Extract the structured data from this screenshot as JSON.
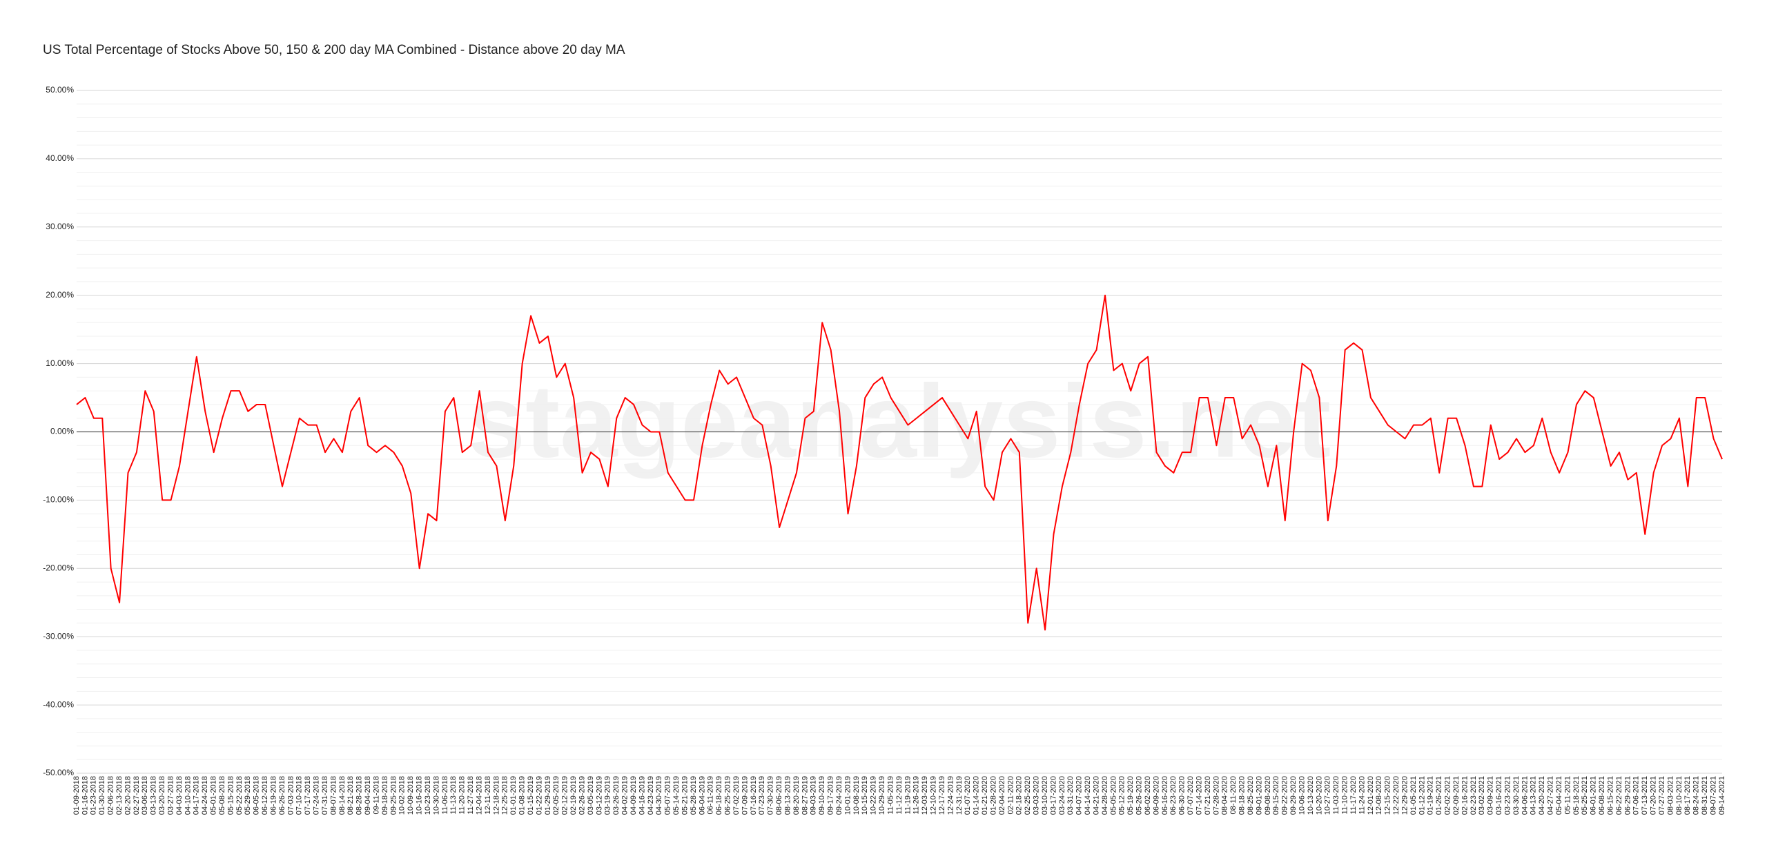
{
  "chart_data": {
    "type": "line",
    "title": "US Total Percentage of Stocks Above 50, 150 & 200 day MA Combined - Distance above 20 day MA",
    "watermark": "stageanalysis.net",
    "categories": [
      "01-09-2018",
      "01-16-2018",
      "01-23-2018",
      "01-30-2018",
      "02-06-2018",
      "02-13-2018",
      "02-20-2018",
      "02-27-2018",
      "03-06-2018",
      "03-13-2018",
      "03-20-2018",
      "03-27-2018",
      "04-03-2018",
      "04-10-2018",
      "04-17-2018",
      "04-24-2018",
      "05-01-2018",
      "05-08-2018",
      "05-15-2018",
      "05-22-2018",
      "05-29-2018",
      "06-05-2018",
      "06-12-2018",
      "06-19-2018",
      "06-26-2018",
      "07-03-2018",
      "07-10-2018",
      "07-17-2018",
      "07-24-2018",
      "07-31-2018",
      "08-07-2018",
      "08-14-2018",
      "08-21-2018",
      "08-28-2018",
      "09-04-2018",
      "09-11-2018",
      "09-18-2018",
      "09-25-2018",
      "10-02-2018",
      "10-09-2018",
      "10-16-2018",
      "10-23-2018",
      "10-30-2018",
      "11-06-2018",
      "11-13-2018",
      "11-20-2018",
      "11-27-2018",
      "12-04-2018",
      "12-11-2018",
      "12-18-2018",
      "12-25-2018",
      "01-01-2019",
      "01-08-2019",
      "01-15-2019",
      "01-22-2019",
      "01-29-2019",
      "02-05-2019",
      "02-12-2019",
      "02-19-2019",
      "02-26-2019",
      "03-05-2019",
      "03-12-2019",
      "03-19-2019",
      "03-26-2019",
      "04-02-2019",
      "04-09-2019",
      "04-16-2019",
      "04-23-2019",
      "04-30-2019",
      "05-07-2019",
      "05-14-2019",
      "05-21-2019",
      "05-28-2019",
      "06-04-2019",
      "06-11-2019",
      "06-18-2019",
      "06-25-2019",
      "07-02-2019",
      "07-09-2019",
      "07-16-2019",
      "07-23-2019",
      "07-30-2019",
      "08-06-2019",
      "08-13-2019",
      "08-20-2019",
      "08-27-2019",
      "09-03-2019",
      "09-10-2019",
      "09-17-2019",
      "09-24-2019",
      "10-01-2019",
      "10-08-2019",
      "10-15-2019",
      "10-22-2019",
      "10-29-2019",
      "11-05-2019",
      "11-12-2019",
      "11-19-2019",
      "11-26-2019",
      "12-03-2019",
      "12-10-2019",
      "12-17-2019",
      "12-24-2019",
      "12-31-2019",
      "01-07-2020",
      "01-14-2020",
      "01-21-2020",
      "01-28-2020",
      "02-04-2020",
      "02-11-2020",
      "02-18-2020",
      "02-25-2020",
      "03-03-2020",
      "03-10-2020",
      "03-17-2020",
      "03-24-2020",
      "03-31-2020",
      "04-07-2020",
      "04-14-2020",
      "04-21-2020",
      "04-28-2020",
      "05-05-2020",
      "05-12-2020",
      "05-19-2020",
      "05-26-2020",
      "06-02-2020",
      "06-09-2020",
      "06-16-2020",
      "06-23-2020",
      "06-30-2020",
      "07-07-2020",
      "07-14-2020",
      "07-21-2020",
      "07-28-2020",
      "08-04-2020",
      "08-11-2020",
      "08-18-2020",
      "08-25-2020",
      "09-01-2020",
      "09-08-2020",
      "09-15-2020",
      "09-22-2020",
      "09-29-2020",
      "10-06-2020",
      "10-13-2020",
      "10-20-2020",
      "10-27-2020",
      "11-03-2020",
      "11-10-2020",
      "11-17-2020",
      "11-24-2020",
      "12-01-2020",
      "12-08-2020",
      "12-15-2020",
      "12-22-2020",
      "12-29-2020",
      "01-05-2021",
      "01-12-2021",
      "01-19-2021",
      "01-26-2021",
      "02-02-2021",
      "02-09-2021",
      "02-16-2021",
      "02-23-2021",
      "03-02-2021",
      "03-09-2021",
      "03-16-2021",
      "03-23-2021",
      "03-30-2021",
      "04-06-2021",
      "04-13-2021",
      "04-20-2021",
      "04-27-2021",
      "05-04-2021",
      "05-11-2021",
      "05-18-2021",
      "05-25-2021",
      "06-01-2021",
      "06-08-2021",
      "06-15-2021",
      "06-22-2021",
      "06-29-2021",
      "07-06-2021",
      "07-13-2021",
      "07-20-2021",
      "07-27-2021",
      "08-03-2021",
      "08-10-2021",
      "08-17-2021",
      "08-24-2021",
      "08-31-2021",
      "09-07-2021",
      "09-14-2021"
    ],
    "values": [
      4,
      5,
      2,
      2,
      -20,
      -25,
      -6,
      -3,
      6,
      3,
      -10,
      -10,
      -5,
      3,
      11,
      3,
      -3,
      2,
      6,
      6,
      3,
      4,
      4,
      -2,
      -8,
      -3,
      2,
      1,
      1,
      -3,
      -1,
      -3,
      3,
      5,
      -2,
      -3,
      -2,
      -3,
      -5,
      -9,
      -20,
      -12,
      -13,
      3,
      5,
      -3,
      -2,
      6,
      -3,
      -5,
      -13,
      -5,
      10,
      17,
      13,
      14,
      8,
      10,
      5,
      -6,
      -3,
      -4,
      -8,
      2,
      5,
      4,
      1,
      0,
      0,
      -6,
      -8,
      -10,
      -10,
      -2,
      4,
      9,
      7,
      8,
      5,
      2,
      1,
      -5,
      -14,
      -10,
      -6,
      2,
      3,
      16,
      12,
      3,
      -12,
      -5,
      5,
      7,
      8,
      5,
      3,
      1,
      2,
      3,
      4,
      5,
      3,
      1,
      -1,
      3,
      -8,
      -10,
      -3,
      -1,
      -3,
      -28,
      -20,
      -29,
      -15,
      -8,
      -3,
      4,
      10,
      12,
      20,
      9,
      10,
      6,
      10,
      11,
      -3,
      -5,
      -6,
      -3,
      -3,
      5,
      5,
      -2,
      5,
      5,
      -1,
      1,
      -2,
      -8,
      -2,
      -13,
      0,
      10,
      9,
      5,
      -13,
      -5,
      12,
      13,
      12,
      5,
      3,
      1,
      0,
      -1,
      1,
      1,
      2,
      -6,
      2,
      2,
      -2,
      -8,
      -8,
      1,
      -4,
      -3,
      -1,
      -3,
      -2,
      2,
      -3,
      -6,
      -3,
      4,
      6,
      5,
      0,
      -5,
      -3,
      -7,
      -6,
      -15,
      -6,
      -2,
      -1,
      2,
      -8,
      5,
      5,
      -1,
      -4
    ],
    "color": "#ff0000",
    "ylim": [
      -50,
      50
    ],
    "yticks": [
      {
        "value": -50,
        "label": "-50.00%"
      },
      {
        "value": -40,
        "label": "-40.00%"
      },
      {
        "value": -30,
        "label": "-30.00%"
      },
      {
        "value": -20,
        "label": "-20.00%"
      },
      {
        "value": -10,
        "label": "-10.00%"
      },
      {
        "value": 0,
        "label": "0.00%"
      },
      {
        "value": 10,
        "label": "10.00%"
      },
      {
        "value": 20,
        "label": "20.00%"
      },
      {
        "value": 30,
        "label": "30.00%"
      },
      {
        "value": 40,
        "label": "40.00%"
      },
      {
        "value": 50,
        "label": "50.00%"
      }
    ],
    "yminorticks": [
      -48,
      -46,
      -44,
      -42,
      -38,
      -36,
      -34,
      -32,
      -28,
      -26,
      -24,
      -22,
      -18,
      -16,
      -14,
      -12,
      -8,
      -6,
      -4,
      -2,
      2,
      4,
      6,
      8,
      12,
      14,
      16,
      18,
      22,
      24,
      26,
      28,
      32,
      34,
      36,
      38,
      42,
      44,
      46,
      48
    ],
    "grid": true
  }
}
